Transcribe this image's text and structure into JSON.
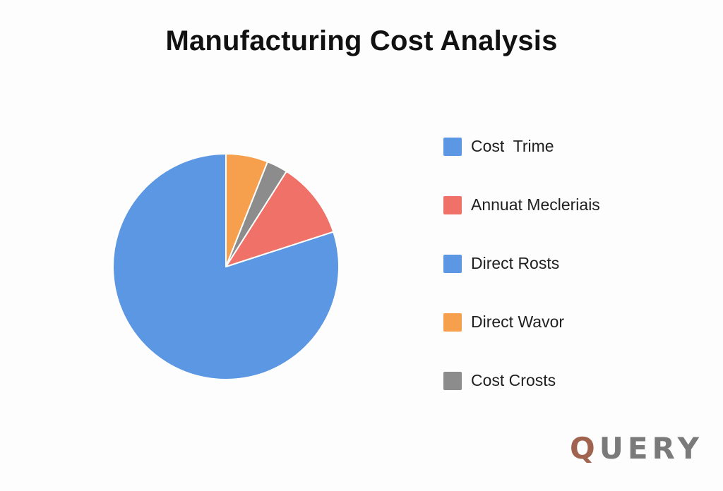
{
  "chart_data": {
    "type": "pie",
    "title": "Manufacturing Cost Analysis",
    "slices": [
      {
        "label": "Cost  Trime",
        "value": 80,
        "color": "#5b97e2"
      },
      {
        "label": "Annuat Mecleriais",
        "value": 11,
        "color": "#ef7167"
      },
      {
        "label": "Direct Rosts",
        "value": 0,
        "color": "#5b97e2"
      },
      {
        "label": "Direct Wavor",
        "value": 6,
        "color": "#f6a04e"
      },
      {
        "label": "Cost Crosts",
        "value": 3,
        "color": "#8c8c8c"
      }
    ],
    "draw_order": [
      0,
      1,
      4,
      3
    ],
    "legend_position": "right"
  },
  "watermark": {
    "first_letter": "Q",
    "rest": "UERY"
  }
}
